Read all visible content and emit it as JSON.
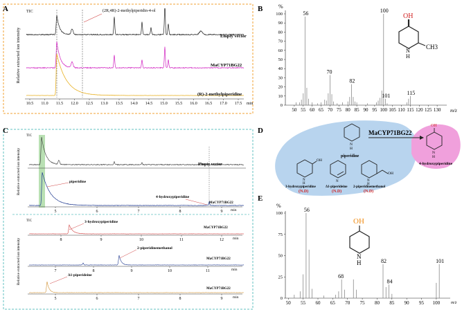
{
  "panels": {
    "A": "A",
    "B": "B",
    "C": "C",
    "D": "D",
    "E": "E"
  },
  "panel_a": {
    "tic_label": "TIC",
    "ylabel": "Relative extracted ion intensity",
    "annotation": "(2R,4R)-2-methylpiperidin-4-ol",
    "trace_labels": [
      "Empty vector",
      "MaCYP71BG22",
      "(R)-2-methylpiperidine"
    ],
    "x_ticks": [
      "10.5",
      "11.0",
      "11.5",
      "12.0",
      "12.5",
      "13.0",
      "13.5",
      "14.0",
      "14.5",
      "15.0",
      "15.5",
      "16.0",
      "16.5",
      "17.0",
      "17.5"
    ],
    "x_unit": "min",
    "colors": {
      "frame": "#f0a030",
      "empty": "#222222",
      "enzyme": "#d020c0",
      "standard": "#e8b020"
    }
  },
  "panel_b": {
    "y_unit": "%",
    "y_ticks": [
      "0",
      "10",
      "20",
      "30",
      "40",
      "50",
      "60",
      "70",
      "80",
      "90",
      "100"
    ],
    "x_ticks": [
      "50",
      "55",
      "60",
      "65",
      "70",
      "75",
      "80",
      "85",
      "90",
      "95",
      "100",
      "105",
      "110",
      "115",
      "120",
      "125",
      "130"
    ],
    "x_unit": "m/z",
    "peak_labels": [
      "56",
      "100",
      "70",
      "82",
      "101",
      "115"
    ],
    "structure_oh": "OH",
    "structure_nh": "N",
    "structure_h": "H",
    "structure_me": "CH3"
  },
  "panel_c": {
    "tic_label": "TIC",
    "ylabel": "Relative extracted ion intensity",
    "top_trace_labels": [
      "Empty vector",
      "MaCYP71BG22"
    ],
    "top_annotations": [
      "piperidine",
      "4-hydroxypiperidine"
    ],
    "top_x_ticks": [
      "5",
      "6",
      "7",
      "8",
      "9"
    ],
    "bottom_trace_labels": [
      "MaCYP71BG22",
      "MaCYP71BG22",
      "MaCYP71BG22"
    ],
    "bottom_annotations": [
      "3-hydroxypiperidine",
      "2-piperidinemethanol",
      "Δ1-piperideine"
    ],
    "bottom_x_ticks_1": [
      "8",
      "9",
      "10",
      "11",
      "12"
    ],
    "bottom_x_ticks_2": [
      "7",
      "8",
      "9",
      "10",
      "11"
    ],
    "bottom_x_ticks_3": [
      "5",
      "6",
      "7",
      "8",
      "9"
    ],
    "x_unit": "min",
    "colors": {
      "frame": "#60c0c0",
      "empty": "#333333",
      "enzyme": "#203a90",
      "red": "#d04040",
      "standard": "#d09030",
      "highlight": "#a8d8a0"
    }
  },
  "panel_d": {
    "enzyme": "MaCYP71BG22",
    "substrate": "piperidine",
    "product": "4-hydroxypiperidine",
    "product_oh": "OH",
    "side_products": [
      "3-hydroxypiperidine",
      "Δ1-piperideine",
      "2-piperidinemethanol"
    ],
    "nd_label": "(N.D)",
    "nh": "N",
    "h": "H",
    "n": "N",
    "oh": "OH",
    "colors": {
      "blob": "#b8d4ee",
      "product_blob": "#f0a0dc",
      "nd": "#d02020"
    }
  },
  "panel_e": {
    "y_unit": "%",
    "y_ticks": [
      "0",
      "25",
      "50",
      "75",
      "100"
    ],
    "x_ticks": [
      "50",
      "55",
      "60",
      "65",
      "70",
      "75",
      "80",
      "85",
      "90",
      "95",
      "100"
    ],
    "x_unit": "m/z",
    "peak_labels": [
      "56",
      "68",
      "82",
      "84",
      "101"
    ],
    "structure_oh": "OH",
    "structure_nh": "N",
    "structure_h": "H"
  },
  "chart_data": [
    {
      "type": "bar",
      "title": "",
      "ylabel": "%",
      "xlabel": "m/z",
      "xlim": [
        45,
        135
      ],
      "ylim": [
        0,
        100
      ],
      "x": [
        51,
        53,
        54,
        55,
        56,
        57,
        58,
        60,
        63,
        65,
        67,
        68,
        69,
        70,
        71,
        72,
        74,
        77,
        80,
        81,
        82,
        83,
        84,
        85,
        91,
        96,
        97,
        98,
        99,
        100,
        101,
        102,
        113,
        114,
        115
      ],
      "values": [
        3,
        3,
        6,
        13,
        97,
        19,
        7,
        3,
        2,
        3,
        6,
        5,
        13,
        33,
        12,
        4,
        2,
        3,
        4,
        9,
        23,
        9,
        4,
        3,
        2,
        3,
        5,
        8,
        16,
        100,
        7,
        2,
        3,
        7,
        10
      ]
    },
    {
      "type": "bar",
      "title": "",
      "ylabel": "%",
      "xlabel": "m/z",
      "xlim": [
        49,
        104
      ],
      "ylim": [
        0,
        100
      ],
      "x": [
        52,
        54,
        55,
        56,
        57,
        58,
        62,
        66,
        67,
        68,
        69,
        72,
        73,
        82,
        83,
        84,
        85,
        100,
        101
      ],
      "values": [
        4,
        8,
        28,
        100,
        57,
        11,
        3,
        4,
        8,
        22,
        10,
        22,
        10,
        40,
        13,
        16,
        5,
        18,
        40
      ]
    }
  ]
}
